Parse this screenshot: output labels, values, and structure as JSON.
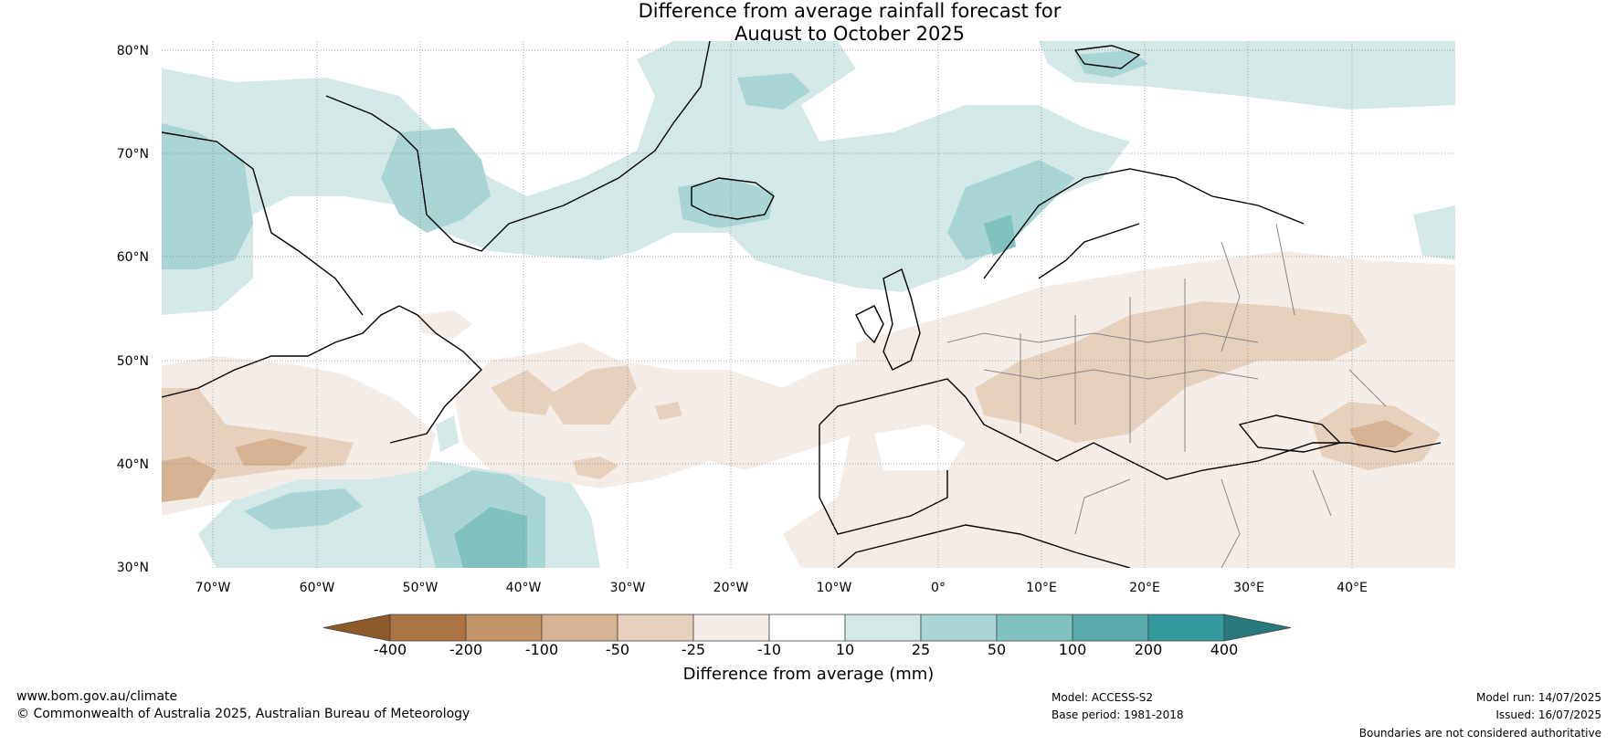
{
  "title_line1": "Difference from average rainfall forecast for",
  "title_line2": "August to October 2025",
  "lat_labels": [
    "80°N",
    "70°N",
    "60°N",
    "50°N",
    "40°N",
    "30°N"
  ],
  "lon_labels": [
    "70°W",
    "60°W",
    "50°W",
    "40°W",
    "30°W",
    "20°W",
    "10°W",
    "0°",
    "10°E",
    "20°E",
    "30°E",
    "40°E"
  ],
  "colorbar": {
    "ticks": [
      "-400",
      "-200",
      "-100",
      "-50",
      "-25",
      "-10",
      "10",
      "25",
      "50",
      "100",
      "200",
      "400"
    ],
    "colors": [
      "#8c5a28",
      "#ac7443",
      "#c29568",
      "#d6b493",
      "#e6d1bf",
      "#f4ece6",
      "#ffffff",
      "#d4e8e7",
      "#a9d6d5",
      "#80c2c0",
      "#59aaaa",
      "#33999a",
      "#28797b"
    ],
    "label": "Difference from average (mm)"
  },
  "footer": {
    "url": "www.bom.gov.au/climate",
    "copyright": "© Commonwealth of Australia 2025, Australian Bureau of Meteorology",
    "model": "Model: ACCESS-S2",
    "base_period": "Base period: 1981-2018",
    "model_run": "Model run: 14/07/2025",
    "issued": "Issued: 16/07/2025",
    "boundaries": "Boundaries are not considered authoritative"
  }
}
